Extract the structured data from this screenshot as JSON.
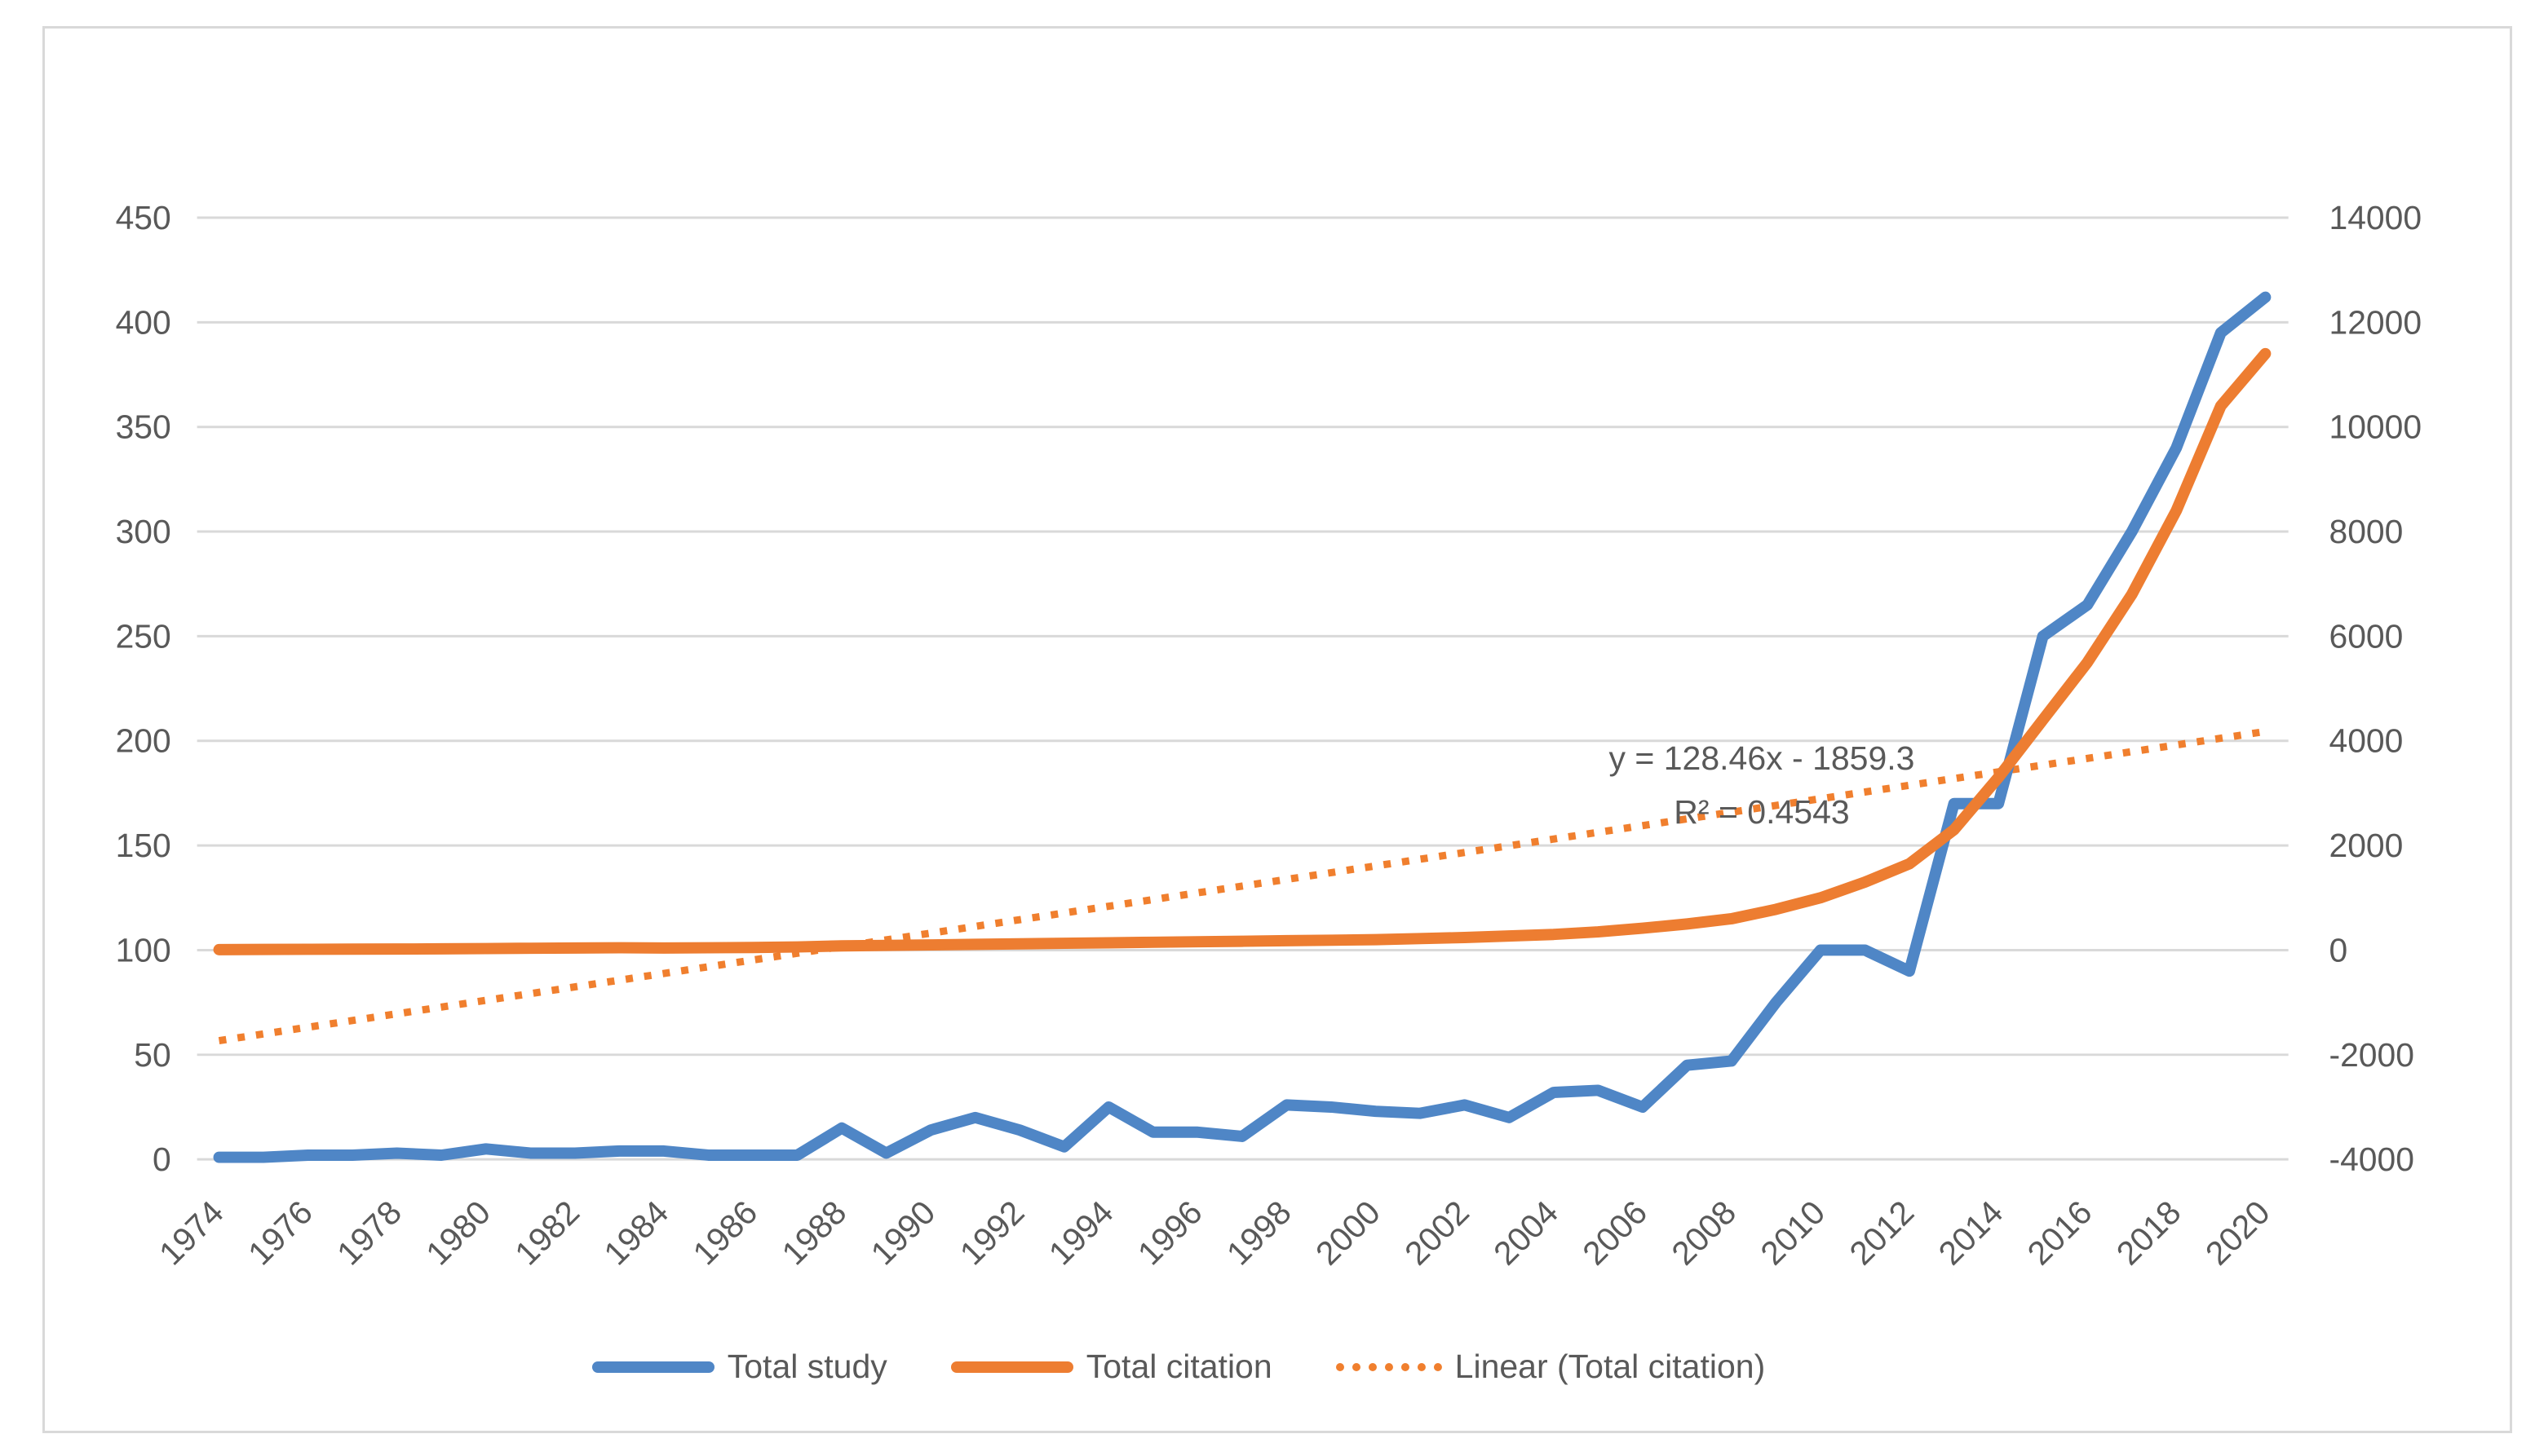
{
  "colors": {
    "study_blue": "#4f86c6",
    "citation_orange": "#ed7d31",
    "trend_orange": "#f07f2e",
    "gridline": "#d9d9d9",
    "axis_text": "#595959",
    "frame_border": "#d9d9d9",
    "background": "#ffffff"
  },
  "annotation": {
    "equation": "y = 128.46x - 1859.3",
    "r_squared": "R² = 0.4543"
  },
  "legend": {
    "items": [
      {
        "label": "Total study",
        "swatch": "solid-blue"
      },
      {
        "label": "Total citation",
        "swatch": "solid-orange"
      },
      {
        "label": "Linear (Total citation)",
        "swatch": "dotted-orange"
      }
    ]
  },
  "chart_data": {
    "type": "line",
    "title": "",
    "xlabel": "",
    "ylabel_left": "",
    "ylabel_right": "",
    "grid": true,
    "legend_position": "bottom",
    "x_years": [
      1974,
      1975,
      1976,
      1977,
      1978,
      1979,
      1980,
      1981,
      1982,
      1983,
      1984,
      1985,
      1986,
      1987,
      1988,
      1989,
      1990,
      1991,
      1992,
      1993,
      1994,
      1995,
      1996,
      1997,
      1998,
      1999,
      2000,
      2001,
      2002,
      2003,
      2004,
      2005,
      2006,
      2007,
      2008,
      2009,
      2010,
      2011,
      2012,
      2013,
      2014,
      2015,
      2016,
      2017,
      2018,
      2019,
      2020
    ],
    "x_tick_labels": [
      "1974",
      "1976",
      "1978",
      "1980",
      "1982",
      "1984",
      "1986",
      "1988",
      "1990",
      "1992",
      "1994",
      "1996",
      "1998",
      "2000",
      "2002",
      "2004",
      "2006",
      "2008",
      "2010",
      "2012",
      "2014",
      "2016",
      "2018",
      "2020"
    ],
    "left_axis": {
      "min": 0,
      "max": 450,
      "step": 50,
      "ticks": [
        "450",
        "400",
        "350",
        "300",
        "250",
        "200",
        "150",
        "100",
        "50",
        "0"
      ]
    },
    "right_axis": {
      "min": -4000,
      "max": 14000,
      "step": 2000,
      "ticks": [
        "14000",
        "12000",
        "10000",
        "8000",
        "6000",
        "4000",
        "2000",
        "0",
        "-2000",
        "-4000"
      ]
    },
    "series": [
      {
        "name": "Total study",
        "axis": "left",
        "style": "solid",
        "color": "#4f86c6",
        "values": [
          1,
          1,
          2,
          2,
          3,
          2,
          5,
          3,
          3,
          4,
          4,
          2,
          2,
          2,
          15,
          3,
          14,
          20,
          14,
          6,
          25,
          13,
          13,
          11,
          26,
          25,
          23,
          22,
          26,
          20,
          32,
          33,
          25,
          45,
          47,
          75,
          100,
          100,
          90,
          170,
          170,
          250,
          265,
          300,
          340,
          395,
          412
        ]
      },
      {
        "name": "Total citation",
        "axis": "right",
        "style": "solid",
        "color": "#ed7d31",
        "values": [
          10,
          12,
          15,
          18,
          20,
          25,
          30,
          35,
          40,
          45,
          40,
          45,
          50,
          60,
          80,
          90,
          100,
          110,
          120,
          130,
          140,
          150,
          160,
          170,
          180,
          190,
          200,
          220,
          240,
          270,
          300,
          350,
          420,
          500,
          600,
          780,
          1000,
          1300,
          1650,
          2300,
          3300,
          4400,
          5500,
          6800,
          8400,
          10400,
          11400
        ]
      }
    ],
    "trendline": {
      "name": "Linear (Total citation)",
      "axis": "right",
      "style": "dotted",
      "color": "#f07f2e",
      "slope": 128.46,
      "intercept": -1859.3,
      "x_index_start": 1,
      "x_index_end": 47
    }
  }
}
